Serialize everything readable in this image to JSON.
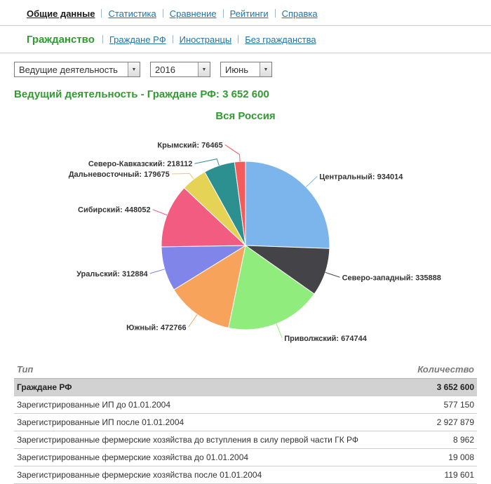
{
  "nav": {
    "items": [
      {
        "label": "Общие данные",
        "active": true
      },
      {
        "label": "Статистика",
        "active": false
      },
      {
        "label": "Сравнение",
        "active": false
      },
      {
        "label": "Рейтинги",
        "active": false
      },
      {
        "label": "Справка",
        "active": false
      }
    ]
  },
  "subnav": {
    "heading": "Гражданство",
    "items": [
      {
        "label": "Граждане РФ"
      },
      {
        "label": "Иностранцы"
      },
      {
        "label": "Без гражданства"
      }
    ]
  },
  "filters": {
    "activity": "Ведущие деятельность",
    "year": "2016",
    "month": "Июнь"
  },
  "heading": "Ведущий деятельность - Граждане РФ: 3 652 600",
  "chart_data": {
    "type": "pie",
    "title": "Вся Россия",
    "total": 3652600,
    "direction": "clockwise",
    "start_angle": 0,
    "label_format": "{name}: {value}",
    "slices": [
      {
        "name": "Центральный",
        "value": 934014,
        "color": "#7cb5ec"
      },
      {
        "name": "Северо-западный",
        "value": 335888,
        "color": "#434348"
      },
      {
        "name": "Приволжский",
        "value": 674744,
        "color": "#90ed7d"
      },
      {
        "name": "Южный",
        "value": 472766,
        "color": "#f7a35c"
      },
      {
        "name": "Уральский",
        "value": 312884,
        "color": "#8085e9"
      },
      {
        "name": "Сибирский",
        "value": 448052,
        "color": "#f15c80"
      },
      {
        "name": "Дальневосточный",
        "value": 179675,
        "color": "#e4d354"
      },
      {
        "name": "Северо-Кавказский",
        "value": 218112,
        "color": "#2b908f"
      },
      {
        "name": "Крымский",
        "value": 76465,
        "color": "#f45b5b"
      }
    ]
  },
  "table": {
    "headers": [
      "Тип",
      "Количество"
    ],
    "rows": [
      {
        "type": "Граждане РФ",
        "count": "3 652 600",
        "selected": true
      },
      {
        "type": "Зарегистрированные ИП до 01.01.2004",
        "count": "577 150",
        "selected": false
      },
      {
        "type": "Зарегистрированные ИП после 01.01.2004",
        "count": "2 927 879",
        "selected": false
      },
      {
        "type": "Зарегистрированные фермерские хозяйства до вступления в силу первой части ГК РФ",
        "count": "8 962",
        "selected": false
      },
      {
        "type": "Зарегистрированные фермерские хозяйства до 01.01.2004",
        "count": "19 008",
        "selected": false
      },
      {
        "type": "Зарегистрированные фермерские хозяйства после 01.01.2004",
        "count": "119 601",
        "selected": false
      }
    ]
  },
  "colors": {
    "link": "#1f73a8",
    "accent_green": "#339933",
    "selected_row_bg": "#d2d2d2",
    "header_text": "#7a7a7a"
  }
}
